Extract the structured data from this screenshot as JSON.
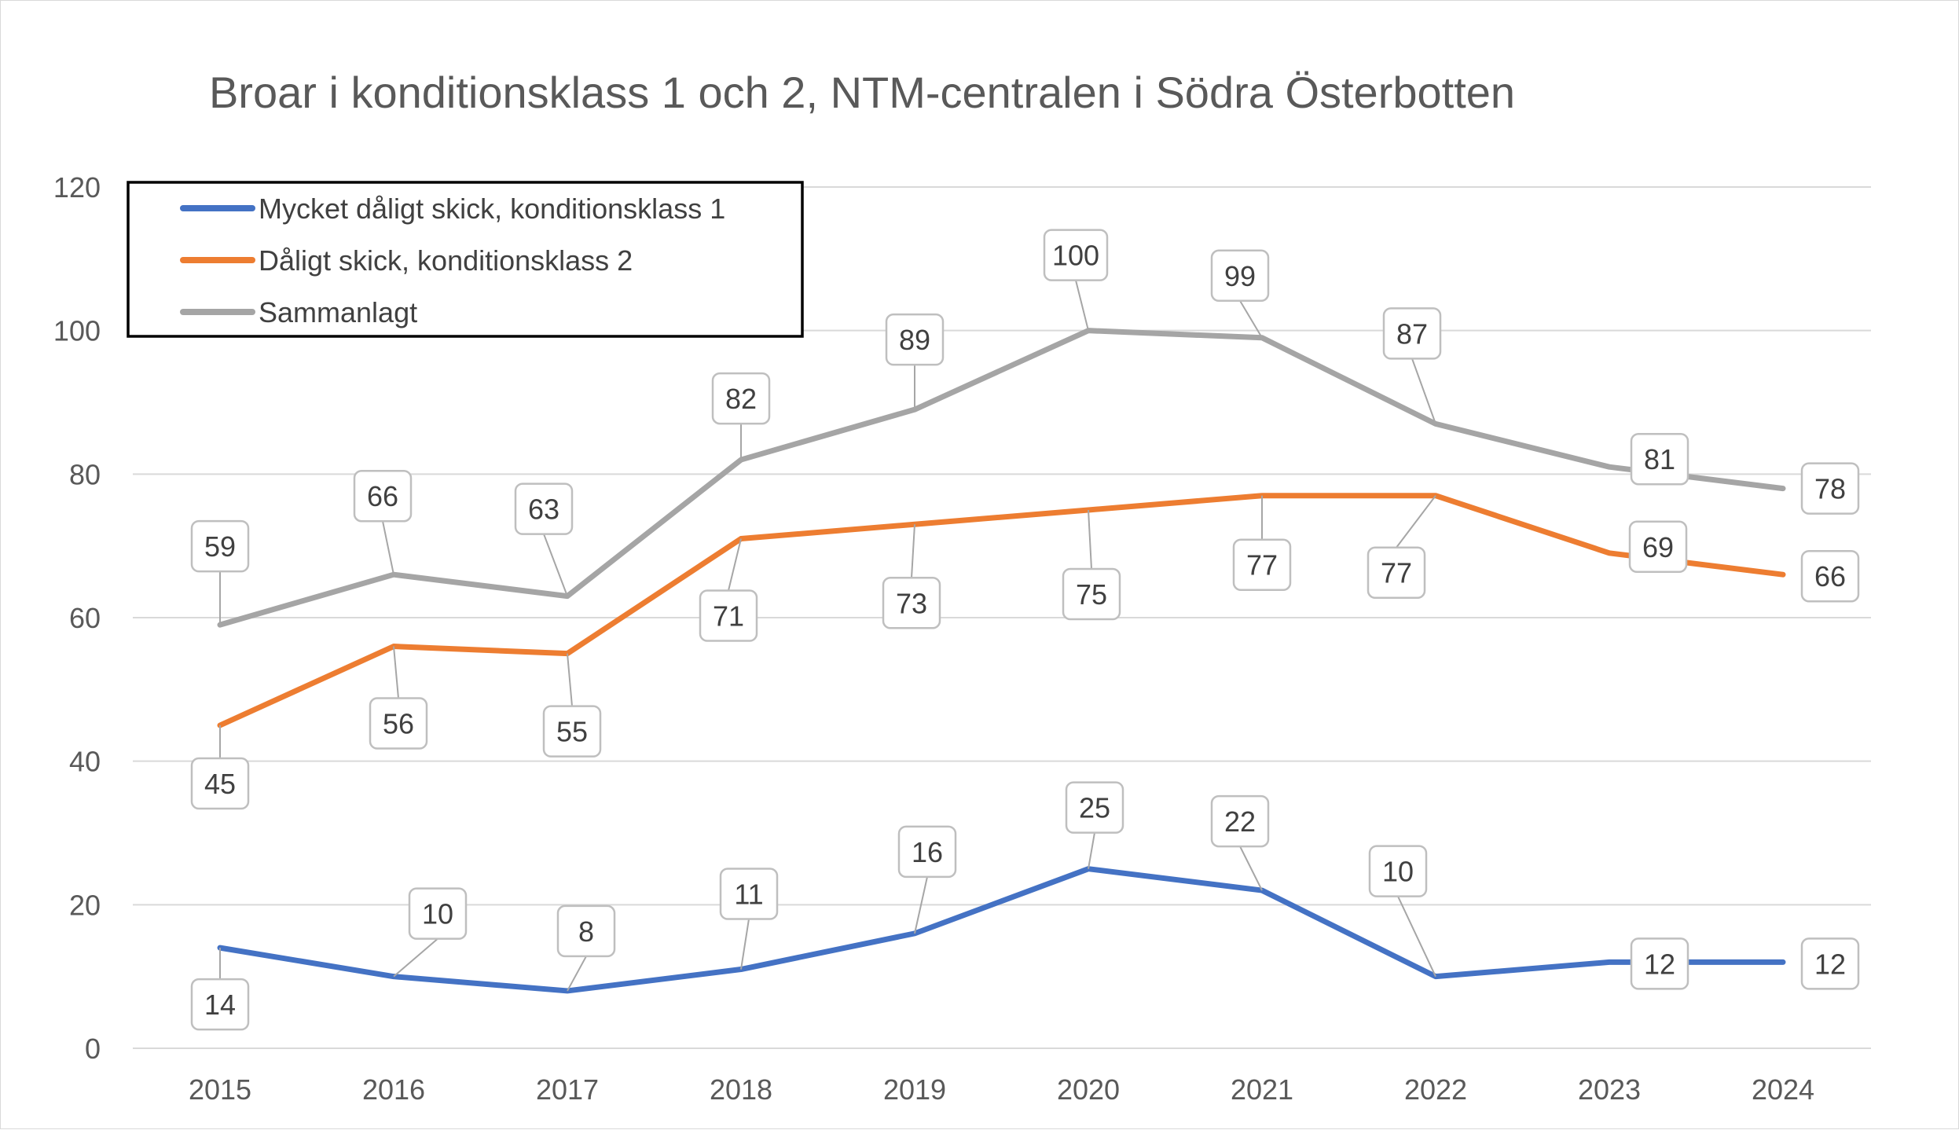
{
  "chart_data": {
    "type": "line",
    "title": "Broar i konditionsklass 1 och 2, NTM-centralen i Södra Österbotten",
    "xlabel": "",
    "ylabel": "",
    "categories": [
      "2015",
      "2016",
      "2017",
      "2018",
      "2019",
      "2020",
      "2021",
      "2022",
      "2023",
      "2024"
    ],
    "ylim": [
      0,
      120
    ],
    "yticks": [
      "0",
      "20",
      "40",
      "60",
      "80",
      "100",
      "120"
    ],
    "grid": true,
    "legend_position": "top-left",
    "series": [
      {
        "name": "Mycket dåligt skick, konditionsklass 1",
        "color": "#4472c4",
        "values": [
          14,
          10,
          8,
          11,
          16,
          25,
          22,
          10,
          12,
          12
        ],
        "labels": [
          "14",
          "10",
          "8",
          "11",
          "16",
          "25",
          "22",
          "10",
          "12",
          "12"
        ]
      },
      {
        "name": "Dåligt skick, konditionsklass 2",
        "color": "#ed7d31",
        "values": [
          45,
          56,
          55,
          71,
          73,
          75,
          77,
          77,
          69,
          66
        ],
        "labels": [
          "45",
          "56",
          "55",
          "71",
          "73",
          "75",
          "77",
          "77",
          "69",
          "66"
        ]
      },
      {
        "name": "Sammanlagt",
        "color": "#a5a5a5",
        "values": [
          59,
          66,
          63,
          82,
          89,
          100,
          99,
          87,
          81,
          78
        ],
        "labels": [
          "59",
          "66",
          "63",
          "82",
          "89",
          "100",
          "99",
          "87",
          "81",
          "78"
        ]
      }
    ]
  }
}
